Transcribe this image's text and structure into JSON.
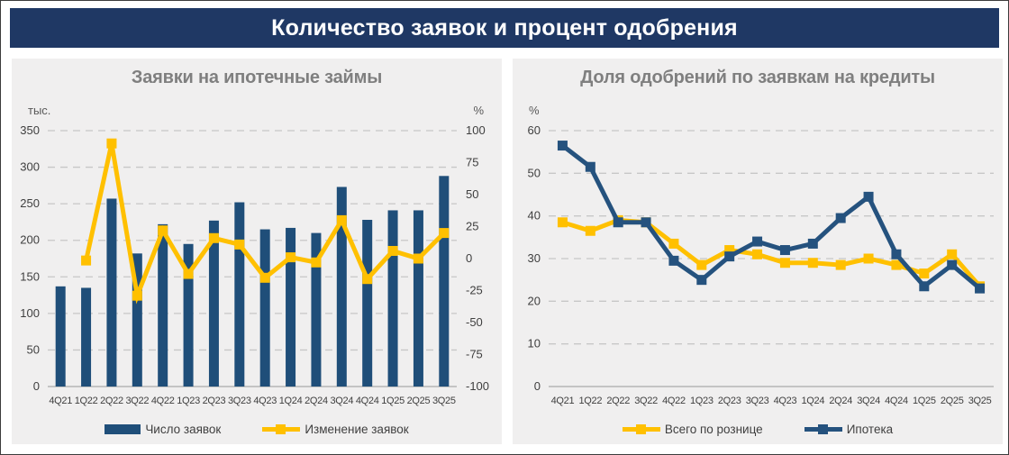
{
  "header": {
    "title": "Количество заявок и процент одобрения"
  },
  "colors": {
    "header_bg": "#1F3864",
    "panel_bg": "#F0EFEF",
    "title_gray": "#7F7F7F",
    "tick_text": "#3F3F3F",
    "grid": "#C7C7C7",
    "axis_line": "#AAAAAA",
    "bars_blue": "#1F4E79",
    "line_yellow": "#FFC000",
    "line_blue": "#25527E"
  },
  "chart_data": [
    {
      "type": "bar",
      "title": "Заявки на ипотечные займы",
      "left_axis_label": "тыс.",
      "right_axis_label": "%",
      "categories": [
        "4Q21",
        "1Q22",
        "2Q22",
        "3Q22",
        "4Q22",
        "1Q23",
        "2Q23",
        "3Q23",
        "4Q23",
        "1Q24",
        "2Q24",
        "3Q24",
        "4Q24",
        "1Q25",
        "2Q25",
        "3Q25"
      ],
      "left_axis": {
        "min": 0,
        "max": 350,
        "step": 50
      },
      "right_axis": {
        "min": -100,
        "max": 100,
        "step": 25
      },
      "grid": "dashed",
      "legend_position": "bottom",
      "series": [
        {
          "name": "Число заявок",
          "type": "bar",
          "axis": "left",
          "color": "#1F4E79",
          "values": [
            137,
            135,
            257,
            182,
            222,
            195,
            227,
            252,
            215,
            217,
            210,
            273,
            228,
            241,
            241,
            288
          ]
        },
        {
          "name": "Изменение заявок",
          "type": "line",
          "axis": "right",
          "color": "#FFC000",
          "values": [
            null,
            -1.5,
            90,
            -29,
            22,
            -12,
            16,
            11,
            -15,
            1,
            -3,
            30,
            -16,
            6,
            0,
            20
          ]
        }
      ]
    },
    {
      "type": "line",
      "title": "Доля одобрений по заявкам на кредиты",
      "left_axis_label": "%",
      "categories": [
        "4Q21",
        "1Q22",
        "2Q22",
        "3Q22",
        "4Q22",
        "1Q23",
        "2Q23",
        "3Q23",
        "4Q23",
        "1Q24",
        "2Q24",
        "3Q24",
        "4Q24",
        "1Q25",
        "2Q25",
        "3Q25"
      ],
      "left_axis": {
        "min": 0,
        "max": 60,
        "step": 10
      },
      "grid": "dashed",
      "legend_position": "bottom",
      "series": [
        {
          "name": "Всего по рознице",
          "type": "line",
          "axis": "left",
          "color": "#FFC000",
          "values": [
            38.5,
            36.5,
            39,
            38.5,
            33.5,
            28.5,
            32,
            31,
            29,
            29,
            28.5,
            30,
            28.5,
            26.5,
            31,
            23.5
          ]
        },
        {
          "name": "Ипотека",
          "type": "line",
          "axis": "left",
          "color": "#25527E",
          "values": [
            56.5,
            51.5,
            38.5,
            38.5,
            29.5,
            25,
            30.5,
            34,
            32,
            33.5,
            39.5,
            44.5,
            31,
            23.5,
            28.5,
            23
          ]
        }
      ]
    }
  ]
}
